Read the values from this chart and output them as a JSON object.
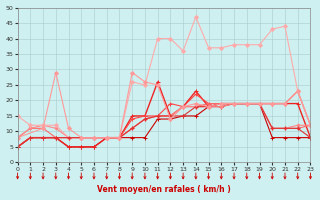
{
  "title": "",
  "xlabel": "Vent moyen/en rafales ( km/h )",
  "xlim": [
    0,
    23
  ],
  "ylim": [
    0,
    50
  ],
  "yticks": [
    0,
    5,
    10,
    15,
    20,
    25,
    30,
    35,
    40,
    45,
    50
  ],
  "xticks": [
    0,
    1,
    2,
    3,
    4,
    5,
    6,
    7,
    8,
    9,
    10,
    11,
    12,
    13,
    14,
    15,
    16,
    17,
    18,
    19,
    20,
    21,
    22,
    23
  ],
  "bg_color": "#cff0f0",
  "grid_color": "#aacccc",
  "series": [
    {
      "x": [
        0,
        1,
        2,
        3,
        4,
        5,
        6,
        7,
        8,
        9,
        10,
        11,
        12,
        13,
        14,
        15,
        16,
        17,
        18,
        19,
        20,
        21,
        22,
        23
      ],
      "y": [
        5,
        8,
        8,
        8,
        5,
        5,
        5,
        8,
        8,
        8,
        8,
        14,
        14,
        15,
        15,
        18,
        18,
        19,
        19,
        19,
        8,
        8,
        8,
        8
      ],
      "color": "#cc0000",
      "marker": "+",
      "lw": 0.8,
      "ms": 3
    },
    {
      "x": [
        0,
        1,
        2,
        3,
        4,
        5,
        6,
        7,
        8,
        9,
        10,
        11,
        12,
        13,
        14,
        15,
        16,
        17,
        18,
        19,
        20,
        21,
        22,
        23
      ],
      "y": [
        5,
        8,
        8,
        8,
        5,
        5,
        5,
        8,
        8,
        15,
        15,
        26,
        15,
        18,
        23,
        18,
        19,
        19,
        19,
        19,
        19,
        19,
        19,
        8
      ],
      "color": "#ee2222",
      "marker": "+",
      "lw": 1.0,
      "ms": 3
    },
    {
      "x": [
        0,
        1,
        2,
        3,
        4,
        5,
        6,
        7,
        8,
        9,
        10,
        11,
        12,
        13,
        14,
        15,
        16,
        17,
        18,
        19,
        20,
        21,
        22,
        23
      ],
      "y": [
        5,
        8,
        8,
        8,
        8,
        8,
        8,
        8,
        8,
        14,
        15,
        15,
        19,
        18,
        22,
        19,
        19,
        19,
        19,
        19,
        19,
        19,
        23,
        12
      ],
      "color": "#ff4444",
      "marker": "+",
      "lw": 0.8,
      "ms": 3
    },
    {
      "x": [
        0,
        1,
        2,
        3,
        4,
        5,
        6,
        7,
        8,
        9,
        10,
        11,
        12,
        13,
        14,
        15,
        16,
        17,
        18,
        19,
        20,
        21,
        22,
        23
      ],
      "y": [
        8,
        11,
        11,
        8,
        8,
        8,
        8,
        8,
        8,
        11,
        14,
        15,
        15,
        18,
        18,
        19,
        19,
        19,
        19,
        19,
        11,
        11,
        11,
        12
      ],
      "color": "#ff6666",
      "marker": "D",
      "lw": 0.8,
      "ms": 1.5
    },
    {
      "x": [
        0,
        1,
        2,
        3,
        4,
        5,
        6,
        7,
        8,
        9,
        10,
        11,
        12,
        13,
        14,
        15,
        16,
        17,
        18,
        19,
        20,
        21,
        22,
        23
      ],
      "y": [
        8,
        11,
        12,
        11,
        8,
        8,
        8,
        8,
        8,
        11,
        14,
        15,
        15,
        18,
        18,
        18,
        18,
        19,
        19,
        19,
        11,
        11,
        12,
        12
      ],
      "color": "#ff8888",
      "marker": "D",
      "lw": 0.8,
      "ms": 1.5
    },
    {
      "x": [
        0,
        1,
        2,
        3,
        4,
        5,
        6,
        7,
        8,
        9,
        10,
        11,
        12,
        13,
        14,
        15,
        16,
        17,
        18,
        19,
        20,
        21,
        22,
        23
      ],
      "y": [
        15,
        12,
        12,
        12,
        8,
        8,
        8,
        8,
        8,
        26,
        25,
        40,
        40,
        36,
        47,
        37,
        37,
        38,
        38,
        38,
        43,
        44,
        23,
        12
      ],
      "color": "#ffaaaa",
      "marker": "D",
      "lw": 0.8,
      "ms": 2
    },
    {
      "x": [
        0,
        1,
        2,
        3,
        4,
        5,
        6,
        7,
        8,
        9,
        10,
        11,
        12,
        13,
        14,
        15,
        16,
        17,
        18,
        19,
        20,
        21,
        22,
        23
      ],
      "y": [
        5,
        8,
        8,
        8,
        8,
        8,
        8,
        8,
        8,
        11,
        14,
        15,
        15,
        15,
        18,
        18,
        19,
        19,
        19,
        19,
        11,
        11,
        11,
        8
      ],
      "color": "#dd3333",
      "marker": "+",
      "lw": 0.8,
      "ms": 3
    },
    {
      "x": [
        0,
        2,
        3,
        4,
        5,
        6,
        7,
        8,
        9,
        10,
        11,
        12,
        13,
        14,
        15,
        16,
        17,
        18,
        19,
        20,
        21,
        22,
        23
      ],
      "y": [
        8,
        11,
        29,
        11,
        8,
        8,
        8,
        8,
        29,
        26,
        25,
        14,
        18,
        19,
        18,
        19,
        19,
        19,
        19,
        19,
        19,
        23,
        12
      ],
      "color": "#ff9999",
      "marker": "D",
      "lw": 0.8,
      "ms": 2
    }
  ],
  "arrow_color": "#cc0000"
}
